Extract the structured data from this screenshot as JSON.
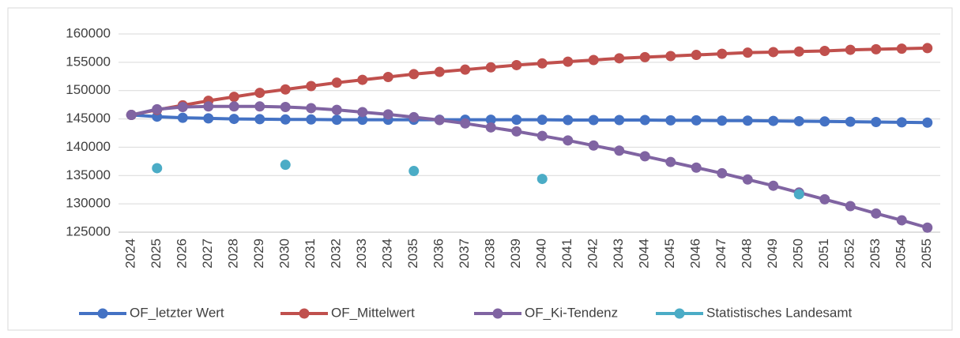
{
  "chart_data": {
    "type": "line",
    "categories": [
      "2024",
      "2025",
      "2026",
      "2027",
      "2028",
      "2029",
      "2030",
      "2031",
      "2032",
      "2033",
      "2034",
      "2035",
      "2036",
      "2037",
      "2038",
      "2039",
      "2040",
      "2041",
      "2042",
      "2043",
      "2044",
      "2045",
      "2046",
      "2047",
      "2048",
      "2049",
      "2050",
      "2051",
      "2052",
      "2053",
      "2054",
      "2055"
    ],
    "series": [
      {
        "name": "OF_letzter Wert",
        "color": "#4472c4",
        "values": [
          145700,
          145400,
          145200,
          145100,
          145000,
          144950,
          144900,
          144900,
          144850,
          144850,
          144850,
          144850,
          144850,
          144850,
          144850,
          144850,
          144850,
          144800,
          144800,
          144800,
          144800,
          144750,
          144750,
          144700,
          144700,
          144650,
          144600,
          144550,
          144500,
          144450,
          144400,
          144350
        ]
      },
      {
        "name": "OF_Mittelwert",
        "color": "#c0504d",
        "values": [
          145700,
          146600,
          147400,
          148200,
          148900,
          149600,
          150200,
          150800,
          151400,
          151900,
          152400,
          152900,
          153300,
          153700,
          154100,
          154500,
          154800,
          155100,
          155400,
          155700,
          155900,
          156100,
          156300,
          156500,
          156700,
          156800,
          156900,
          157000,
          157200,
          157300,
          157400,
          157500
        ]
      },
      {
        "name": "OF_Ki-Tendenz",
        "color": "#8064a2",
        "values": [
          145700,
          146700,
          147100,
          147200,
          147200,
          147200,
          147100,
          146900,
          146600,
          146200,
          145800,
          145300,
          144800,
          144200,
          143500,
          142800,
          142000,
          141200,
          140300,
          139400,
          138400,
          137400,
          136400,
          135400,
          134300,
          133200,
          132000,
          130800,
          129600,
          128300,
          127100,
          125800
        ]
      },
      {
        "name": "Statistisches Landesamt",
        "color": "#4bacc6",
        "markers_only": true,
        "values": [
          null,
          136300,
          null,
          null,
          null,
          null,
          136900,
          null,
          null,
          null,
          null,
          135800,
          null,
          null,
          null,
          null,
          134400,
          null,
          null,
          null,
          null,
          null,
          null,
          null,
          null,
          null,
          131700,
          null,
          null,
          null,
          null,
          null
        ]
      }
    ],
    "ylim": [
      125000,
      160000
    ],
    "yticks": [
      125000,
      130000,
      135000,
      140000,
      145000,
      150000,
      155000,
      160000
    ],
    "grid": true,
    "legend": "bottom"
  }
}
